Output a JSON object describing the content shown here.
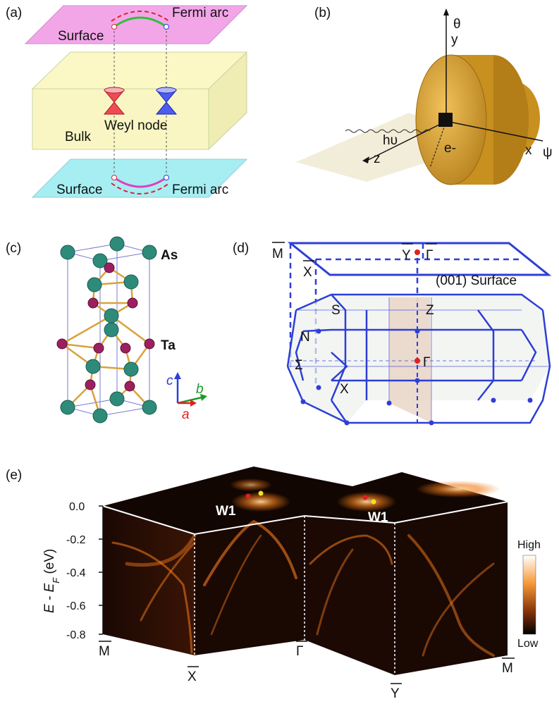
{
  "panels": {
    "a": {
      "label": "(a)",
      "fermi_arc_top": "Fermi arc",
      "surface_top": "Surface",
      "weyl_node": "Weyl node",
      "bulk": "Bulk",
      "surface_bottom": "Surface",
      "fermi_arc_bottom": "Fermi arc"
    },
    "b": {
      "label": "(b)",
      "theta": "θ",
      "y": "y",
      "hv": "hυ",
      "z": "z",
      "e": "e-",
      "x": "x",
      "psi": "ψ"
    },
    "c": {
      "label": "(c)",
      "as": "As",
      "ta": "Ta",
      "axis_c": "c",
      "axis_b": "b",
      "axis_a": "a"
    },
    "d": {
      "label": "(d)",
      "M_bar": "M",
      "X_bar": "X",
      "Y_bar": "Y",
      "Gamma_bar": "Γ",
      "surface": "(001) Surface",
      "S": "S",
      "Z": "Z",
      "N": "N",
      "Sigma": "Σ",
      "Gamma": "Γ",
      "X": "X"
    },
    "e": {
      "label": "(e)",
      "ylabel": "E - E",
      "ylabel_sub": "F",
      "ylabel_unit": " (eV)",
      "yticks": [
        "0.0",
        "-0.2",
        "-0.4",
        "-0.6",
        "-0.8"
      ],
      "w1_left": "W1",
      "w1_right": "W1",
      "bottom_labels": [
        "M",
        "X",
        "Γ",
        "Y",
        "M"
      ],
      "colorbar_high": "High",
      "colorbar_low": "Low"
    }
  },
  "colors": {
    "surface_top": "#f2a6e8",
    "surface_bottom": "#a6eef2",
    "bulk": "#fbf8c6",
    "blue_bz": "#2d3fd6",
    "arpes_dark": "#120602",
    "arpes_orange": "#f47c1c"
  }
}
